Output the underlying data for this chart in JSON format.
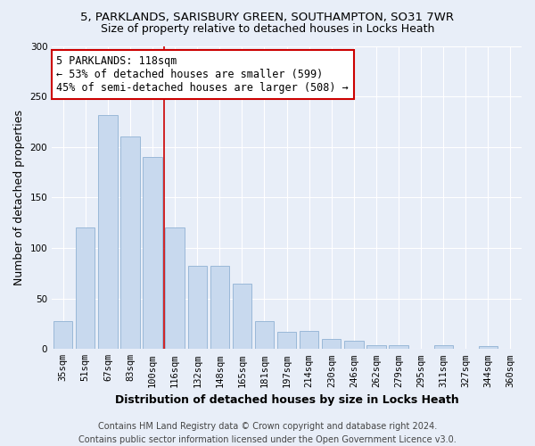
{
  "title_line1": "5, PARKLANDS, SARISBURY GREEN, SOUTHAMPTON, SO31 7WR",
  "title_line2": "Size of property relative to detached houses in Locks Heath",
  "xlabel": "Distribution of detached houses by size in Locks Heath",
  "ylabel": "Number of detached properties",
  "categories": [
    "35sqm",
    "51sqm",
    "67sqm",
    "83sqm",
    "100sqm",
    "116sqm",
    "132sqm",
    "148sqm",
    "165sqm",
    "181sqm",
    "197sqm",
    "214sqm",
    "230sqm",
    "246sqm",
    "262sqm",
    "279sqm",
    "295sqm",
    "311sqm",
    "327sqm",
    "344sqm",
    "360sqm"
  ],
  "values": [
    28,
    120,
    232,
    210,
    190,
    120,
    82,
    82,
    65,
    28,
    17,
    18,
    10,
    8,
    4,
    4,
    0,
    4,
    0,
    3,
    0
  ],
  "bar_color": "#c8d9ee",
  "bar_edge_color": "#9ab8d8",
  "vline_x": 4.5,
  "vline_color": "#cc0000",
  "annotation_text": "5 PARKLANDS: 118sqm\n← 53% of detached houses are smaller (599)\n45% of semi-detached houses are larger (508) →",
  "annotation_box_color": "#ffffff",
  "annotation_box_edge": "#cc0000",
  "ylim": [
    0,
    300
  ],
  "yticks": [
    0,
    50,
    100,
    150,
    200,
    250,
    300
  ],
  "background_color": "#e8eef8",
  "footer_line1": "Contains HM Land Registry data © Crown copyright and database right 2024.",
  "footer_line2": "Contains public sector information licensed under the Open Government Licence v3.0.",
  "title_fontsize": 9.5,
  "subtitle_fontsize": 9,
  "axis_label_fontsize": 9,
  "tick_fontsize": 7.5,
  "annotation_fontsize": 8.5,
  "footer_fontsize": 7
}
